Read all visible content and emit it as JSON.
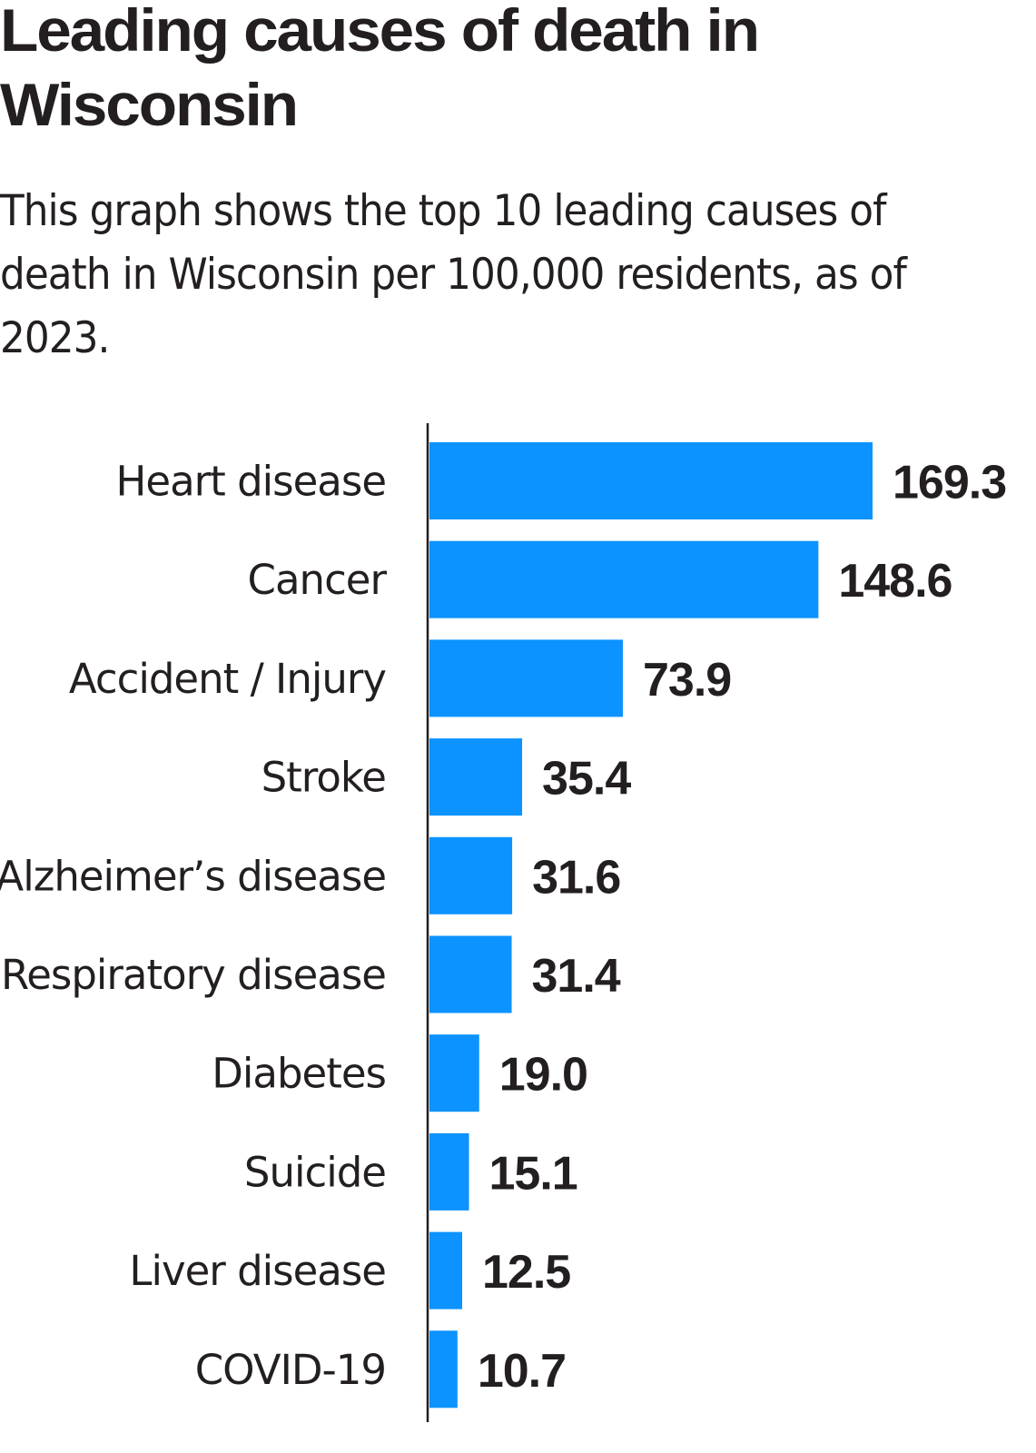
{
  "chart_data": {
    "type": "bar",
    "orientation": "horizontal",
    "title": "Leading causes of death in Wisconsin",
    "subtitle": "This graph shows the top 10 leading causes of death in Wisconsin per 100,000 residents, as of 2023.",
    "categories": [
      "Heart disease",
      "Cancer",
      "Accident / Injury",
      "Stroke",
      "Alzheimer’s disease",
      "Respiratory disease",
      "Diabetes",
      "Suicide",
      "Liver disease",
      "COVID-19"
    ],
    "values": [
      169.3,
      148.6,
      73.9,
      35.4,
      31.6,
      31.4,
      19.0,
      15.1,
      12.5,
      10.7
    ],
    "value_labels": [
      "169.3",
      "148.6",
      "73.9",
      "35.4",
      "31.6",
      "31.4",
      "19.0",
      "15.1",
      "12.5",
      "10.7"
    ],
    "xlim": [
      0,
      180
    ],
    "grid": false,
    "bar_color": "#0c93ff",
    "axis_color": "#231f20"
  }
}
